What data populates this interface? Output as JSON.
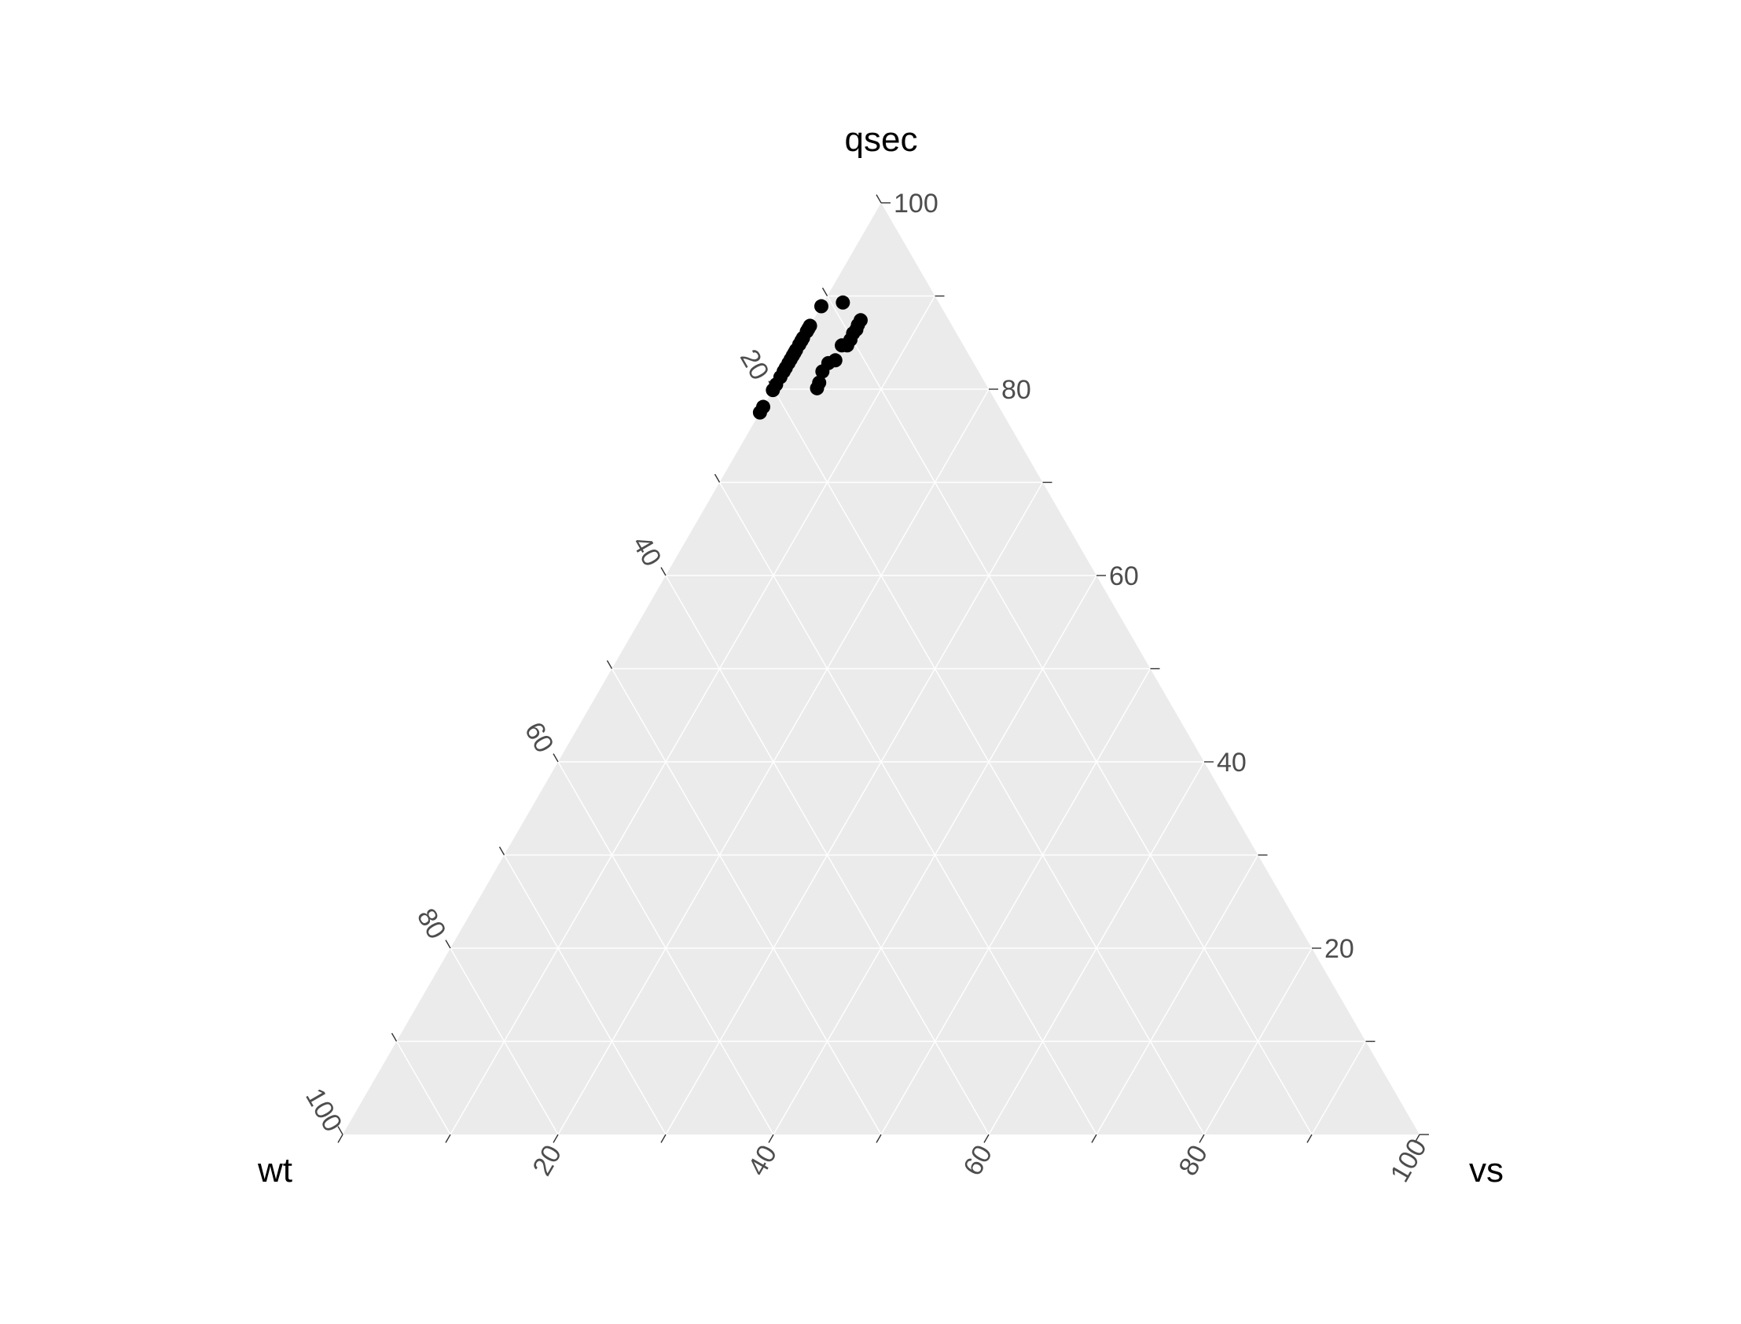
{
  "chart_data": {
    "type": "scatter",
    "subtype": "ternary",
    "axes": {
      "top": {
        "name": "qsec"
      },
      "left": {
        "name": "wt"
      },
      "right": {
        "name": "vs"
      }
    },
    "axis_ranges": [
      0,
      100
    ],
    "tick_values": [
      20,
      40,
      60,
      80,
      100
    ],
    "tick_labels": {
      "top": [
        "20",
        "40",
        "60",
        "80",
        "100"
      ],
      "left": [
        "20",
        "40",
        "60",
        "80",
        "100"
      ],
      "right": [
        "20",
        "40",
        "60",
        "80",
        "100"
      ]
    },
    "grid": true,
    "grid_step": 10,
    "point_color": "#000000",
    "panel_color": "#ebebeb",
    "grid_color": "#ffffff",
    "points": [
      {
        "qsec": 89.3,
        "wt": 8.9,
        "vs": 1.8
      },
      {
        "qsec": 88.9,
        "wt": 11.1,
        "vs": 0
      },
      {
        "qsec": 86.8,
        "wt": 13.2,
        "vs": 0
      },
      {
        "qsec": 86.5,
        "wt": 13.5,
        "vs": 0
      },
      {
        "qsec": 86.2,
        "wt": 13.8,
        "vs": 0
      },
      {
        "qsec": 85.5,
        "wt": 14.5,
        "vs": 0
      },
      {
        "qsec": 85.2,
        "wt": 14.8,
        "vs": 0
      },
      {
        "qsec": 84.8,
        "wt": 15.2,
        "vs": 0
      },
      {
        "qsec": 84.2,
        "wt": 15.8,
        "vs": 0
      },
      {
        "qsec": 83.9,
        "wt": 16.1,
        "vs": 0
      },
      {
        "qsec": 83.6,
        "wt": 16.4,
        "vs": 0
      },
      {
        "qsec": 83.2,
        "wt": 16.8,
        "vs": 0
      },
      {
        "qsec": 82.8,
        "wt": 17.2,
        "vs": 0
      },
      {
        "qsec": 82.3,
        "wt": 17.7,
        "vs": 0
      },
      {
        "qsec": 81.9,
        "wt": 18.1,
        "vs": 0
      },
      {
        "qsec": 81.3,
        "wt": 18.7,
        "vs": 0
      },
      {
        "qsec": 80.5,
        "wt": 19.5,
        "vs": 0
      },
      {
        "qsec": 79.9,
        "wt": 20.1,
        "vs": 0
      },
      {
        "qsec": 78.1,
        "wt": 21.9,
        "vs": 0
      },
      {
        "qsec": 77.5,
        "wt": 22.5,
        "vs": 0
      },
      {
        "qsec": 87.4,
        "wt": 8.2,
        "vs": 4.4
      },
      {
        "qsec": 86.9,
        "wt": 8.7,
        "vs": 4.4
      },
      {
        "qsec": 86.4,
        "wt": 9.1,
        "vs": 4.5
      },
      {
        "qsec": 86.0,
        "wt": 9.6,
        "vs": 4.4
      },
      {
        "qsec": 85.3,
        "wt": 10.2,
        "vs": 4.5
      },
      {
        "qsec": 84.7,
        "wt": 10.8,
        "vs": 4.5
      },
      {
        "qsec": 84.7,
        "wt": 11.3,
        "vs": 4.0
      },
      {
        "qsec": 83.1,
        "wt": 12.7,
        "vs": 4.2
      },
      {
        "qsec": 82.8,
        "wt": 13.5,
        "vs": 3.7
      },
      {
        "qsec": 81.9,
        "wt": 14.5,
        "vs": 3.6
      },
      {
        "qsec": 80.7,
        "wt": 15.4,
        "vs": 3.9
      },
      {
        "qsec": 80.1,
        "wt": 15.9,
        "vs": 4.0
      }
    ]
  }
}
